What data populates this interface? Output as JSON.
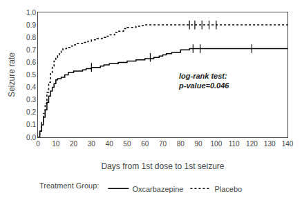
{
  "chart_data": {
    "type": "step",
    "xlabel": "Days from 1st dose to 1st seizure",
    "ylabel": "Seizure rate",
    "xlim": [
      0,
      140
    ],
    "ylim": [
      0.0,
      1.0
    ],
    "xticks": [
      0,
      10,
      20,
      30,
      40,
      50,
      60,
      70,
      80,
      90,
      100,
      110,
      120,
      130,
      140
    ],
    "yticks": [
      {
        "value": 0.0,
        "label": "0.0"
      },
      0.1,
      0.2,
      0.3,
      0.4,
      0.5,
      0.6,
      0.7,
      0.8,
      0.9,
      {
        "value": 1.0,
        "label": "1.0"
      }
    ],
    "grid": false,
    "legend": "bottom",
    "legend_title": "Treatment Group:",
    "annotations": [
      {
        "text": "log-rank test:\np-value=0.046",
        "x": 78,
        "y": 0.37
      }
    ],
    "series": [
      {
        "name": "Oxcarbazepine",
        "color": "#000000",
        "line_style": "solid",
        "x": [
          0,
          1,
          2,
          3,
          4,
          5,
          6,
          7,
          8,
          9,
          10,
          11,
          13,
          15,
          17,
          20,
          25,
          27,
          30,
          35,
          37,
          40,
          45,
          50,
          55,
          60,
          65,
          68,
          70,
          72,
          75,
          80,
          85,
          90,
          95,
          100,
          105,
          110,
          115,
          120,
          125,
          130,
          135,
          140
        ],
        "values": [
          0.0,
          0.05,
          0.1,
          0.16,
          0.22,
          0.28,
          0.33,
          0.37,
          0.4,
          0.43,
          0.46,
          0.47,
          0.48,
          0.5,
          0.52,
          0.53,
          0.54,
          0.55,
          0.56,
          0.57,
          0.58,
          0.59,
          0.6,
          0.61,
          0.62,
          0.63,
          0.64,
          0.65,
          0.66,
          0.67,
          0.68,
          0.7,
          0.71,
          0.71,
          0.71,
          0.71,
          0.71,
          0.71,
          0.71,
          0.71,
          0.71,
          0.71,
          0.71,
          0.71
        ],
        "censors_x": [
          30,
          63,
          87,
          91,
          120
        ],
        "censors_y": [
          0.56,
          0.64,
          0.71,
          0.71,
          0.71
        ]
      },
      {
        "name": "Placebo",
        "color": "#000000",
        "line_style": "dotted",
        "x": [
          0,
          1,
          2,
          3,
          4,
          5,
          6,
          7,
          8,
          9,
          10,
          11,
          12,
          13,
          14,
          16,
          18,
          20,
          22,
          25,
          28,
          30,
          33,
          36,
          38,
          40,
          43,
          45,
          48,
          50,
          55,
          58,
          60,
          65,
          70,
          75,
          80,
          85,
          90,
          95,
          100,
          140
        ],
        "values": [
          0.0,
          0.05,
          0.12,
          0.19,
          0.27,
          0.36,
          0.44,
          0.51,
          0.57,
          0.61,
          0.64,
          0.66,
          0.68,
          0.7,
          0.71,
          0.72,
          0.73,
          0.74,
          0.75,
          0.76,
          0.77,
          0.78,
          0.79,
          0.8,
          0.81,
          0.82,
          0.84,
          0.85,
          0.87,
          0.88,
          0.89,
          0.895,
          0.9,
          0.9,
          0.9,
          0.9,
          0.9,
          0.9,
          0.9,
          0.9,
          0.9,
          0.9
        ],
        "censors_x": [
          85,
          88,
          92,
          96,
          100
        ],
        "censors_y": [
          0.9,
          0.9,
          0.9,
          0.9,
          0.9
        ]
      }
    ]
  }
}
